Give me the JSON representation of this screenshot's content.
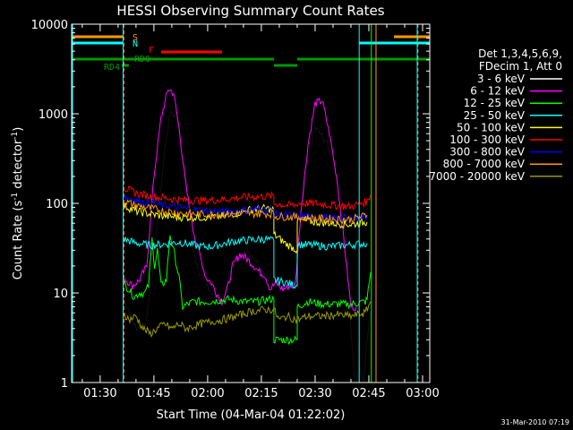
{
  "chart_data": {
    "type": "line",
    "title": "HESSI Observing Summary Count Rates",
    "xlabel": "Start Time (04-Mar-04 01:22:02)",
    "ylabel": "Count Rate (s⁻¹ detector⁻¹)",
    "ylabel_parts": [
      "Count Rate (s",
      "-1",
      " detector",
      "-1",
      ")"
    ],
    "yscale": "log",
    "ylim": [
      1,
      10000
    ],
    "xlim_minutes": [
      82.03,
      182.0
    ],
    "x_tick_labels": [
      "01:30",
      "01:45",
      "02:00",
      "02:15",
      "02:30",
      "02:45",
      "03:00"
    ],
    "x_tick_minutes": [
      90,
      105,
      120,
      135,
      150,
      165,
      180
    ],
    "y_tick_labels": [
      "1",
      "10",
      "100",
      "1000",
      "10000"
    ],
    "y_tick_values": [
      1,
      10,
      100,
      1000,
      10000
    ],
    "legend_header": [
      "Det 1,3,4,5,6,9,",
      "FDecim 1, Att 0"
    ],
    "footer_date": "31-Mar-2010 07:19",
    "state_labels": [
      "S",
      "N",
      "F",
      "RD0",
      "RD4"
    ],
    "series": [
      {
        "name": "3 - 6 keV",
        "color": "#000000",
        "points": [
          [
            96.5,
            9
          ],
          [
            100,
            4
          ],
          [
            103,
            5
          ],
          [
            106,
            60
          ],
          [
            108,
            400
          ],
          [
            109.5,
            1000
          ],
          [
            111,
            950
          ],
          [
            112.5,
            500
          ],
          [
            114,
            120
          ],
          [
            116,
            30
          ],
          [
            118,
            15
          ],
          [
            120,
            12
          ],
          [
            122,
            9
          ],
          [
            124,
            8
          ],
          [
            126,
            15
          ],
          [
            128,
            25
          ],
          [
            131,
            30
          ],
          [
            133,
            25
          ],
          [
            134.5,
            20
          ],
          [
            136,
            17
          ],
          [
            138,
            13
          ],
          [
            140,
            14
          ],
          [
            142,
            11
          ],
          [
            144,
            12
          ],
          [
            146,
            60
          ],
          [
            148,
            300
          ],
          [
            150,
            700
          ],
          [
            153,
            500
          ],
          [
            155,
            300
          ],
          [
            157,
            150
          ],
          [
            158.5,
            40
          ],
          [
            160,
            4
          ],
          [
            161,
            1
          ],
          [
            162.5,
            1.5
          ],
          [
            163.5,
            1
          ],
          [
            164.5,
            3
          ],
          [
            165.5,
            6
          ]
        ]
      },
      {
        "name": "6 - 12 keV",
        "color": "#ff00ff",
        "points": [
          [
            96.5,
            15
          ],
          [
            99,
            12
          ],
          [
            101,
            14
          ],
          [
            103,
            20
          ],
          [
            105,
            200
          ],
          [
            107,
            900
          ],
          [
            109,
            1900
          ],
          [
            110.5,
            1700
          ],
          [
            112,
            700
          ],
          [
            114,
            150
          ],
          [
            116,
            50
          ],
          [
            118,
            25
          ],
          [
            119.5,
            15
          ],
          [
            121,
            13
          ],
          [
            122.5,
            10
          ],
          [
            124,
            8
          ],
          [
            125.5,
            11
          ],
          [
            127,
            20
          ],
          [
            129,
            27
          ],
          [
            131,
            24
          ],
          [
            133,
            20
          ],
          [
            134.5,
            17
          ],
          [
            136,
            16
          ],
          [
            137.5,
            11
          ],
          [
            139,
            13
          ],
          [
            141,
            11
          ],
          [
            143,
            12
          ],
          [
            144.5,
            13
          ],
          [
            146,
            80
          ],
          [
            148,
            450
          ],
          [
            150,
            1300
          ],
          [
            152,
            1400
          ],
          [
            154,
            600
          ],
          [
            156,
            200
          ],
          [
            158,
            40
          ],
          [
            160,
            7
          ],
          [
            161.5,
            7
          ]
        ]
      },
      {
        "name": "12 - 25 keV",
        "color": "#00ff00",
        "points": [
          [
            96.5,
            13
          ],
          [
            98,
            11
          ],
          [
            99.5,
            9
          ],
          [
            101,
            10
          ],
          [
            102.5,
            10
          ],
          [
            103.5,
            12
          ],
          [
            104.5,
            40
          ],
          [
            105.2,
            20
          ],
          [
            106,
            30
          ],
          [
            107,
            12
          ],
          [
            108.5,
            14
          ],
          [
            109.5,
            45
          ],
          [
            110.5,
            30
          ],
          [
            112,
            15
          ],
          [
            113,
            7
          ],
          [
            116,
            8
          ],
          [
            120,
            8
          ],
          [
            126,
            8.5
          ],
          [
            130,
            8
          ],
          [
            134,
            8
          ],
          [
            137,
            8.5
          ],
          [
            138.5,
            8.5
          ],
          [
            138.5,
            3
          ],
          [
            145,
            3
          ],
          [
            145,
            7
          ],
          [
            148,
            8
          ],
          [
            152,
            7.5
          ],
          [
            156,
            7.5
          ],
          [
            160,
            7.5
          ],
          [
            164,
            8
          ],
          [
            164.5,
            8.5
          ],
          [
            165.5,
            17
          ]
        ]
      },
      {
        "name": "25 - 50 keV",
        "color": "#00ffff",
        "points": [
          [
            96.5,
            40
          ],
          [
            100,
            36
          ],
          [
            104,
            34
          ],
          [
            108,
            35
          ],
          [
            112,
            37
          ],
          [
            115,
            35
          ],
          [
            118,
            33
          ],
          [
            121,
            33
          ],
          [
            124,
            35
          ],
          [
            128,
            38
          ],
          [
            132,
            39
          ],
          [
            136,
            40
          ],
          [
            138.5,
            38
          ],
          [
            138.5,
            14
          ],
          [
            142,
            13
          ],
          [
            145,
            12
          ],
          [
            145,
            35
          ],
          [
            150,
            34
          ],
          [
            154,
            33
          ],
          [
            158,
            34
          ],
          [
            162,
            35
          ],
          [
            164.5,
            36
          ]
        ]
      },
      {
        "name": "50 - 100 keV",
        "color": "#ffff00",
        "points": [
          [
            96.5,
            95
          ],
          [
            100,
            82
          ],
          [
            104,
            76
          ],
          [
            108,
            72
          ],
          [
            112,
            70
          ],
          [
            116,
            70
          ],
          [
            120,
            70
          ],
          [
            124,
            72
          ],
          [
            128,
            78
          ],
          [
            132,
            85
          ],
          [
            136,
            88
          ],
          [
            138.5,
            85
          ],
          [
            138.5,
            45
          ],
          [
            142,
            35
          ],
          [
            145,
            30
          ],
          [
            145,
            65
          ],
          [
            150,
            62
          ],
          [
            155,
            60
          ],
          [
            160,
            58
          ],
          [
            164.5,
            62
          ]
        ]
      },
      {
        "name": "100 - 300 keV",
        "color": "#ff0000",
        "points": [
          [
            96.5,
            150
          ],
          [
            100,
            130
          ],
          [
            104,
            120
          ],
          [
            108,
            115
          ],
          [
            112,
            110
          ],
          [
            116,
            108
          ],
          [
            120,
            108
          ],
          [
            124,
            110
          ],
          [
            128,
            115
          ],
          [
            132,
            118
          ],
          [
            136,
            120
          ],
          [
            138.5,
            120
          ],
          [
            138.5,
            100
          ],
          [
            142,
            95
          ],
          [
            145,
            95
          ],
          [
            145,
            100
          ],
          [
            150,
            100
          ],
          [
            155,
            95
          ],
          [
            160,
            92
          ],
          [
            164.5,
            105
          ],
          [
            165.5,
            125
          ]
        ]
      },
      {
        "name": "300 - 800 keV",
        "color": "#0000ff",
        "points": [
          [
            96.5,
            120
          ],
          [
            100,
            108
          ],
          [
            104,
            100
          ],
          [
            108,
            95
          ],
          [
            112,
            90
          ],
          [
            116,
            85
          ],
          [
            120,
            82
          ],
          [
            124,
            80
          ],
          [
            128,
            82
          ],
          [
            132,
            85
          ],
          [
            136,
            86
          ],
          [
            138.5,
            85
          ],
          [
            138.5,
            75
          ],
          [
            145,
            72
          ],
          [
            150,
            70
          ],
          [
            155,
            68
          ],
          [
            160,
            68
          ],
          [
            164.5,
            72
          ]
        ]
      },
      {
        "name": "800 - 7000 keV",
        "color": "#ff9900",
        "points": [
          [
            96.5,
            105
          ],
          [
            100,
            95
          ],
          [
            104,
            88
          ],
          [
            108,
            82
          ],
          [
            112,
            78
          ],
          [
            116,
            76
          ],
          [
            120,
            75
          ],
          [
            124,
            75
          ],
          [
            128,
            76
          ],
          [
            132,
            77
          ],
          [
            136,
            77
          ],
          [
            138.5,
            76
          ],
          [
            138.5,
            72
          ],
          [
            145,
            70
          ],
          [
            150,
            68
          ],
          [
            155,
            67
          ],
          [
            160,
            66
          ],
          [
            164.5,
            74
          ]
        ]
      },
      {
        "name": "7000 - 20000 keV",
        "color": "#999900",
        "points": [
          [
            96.5,
            6
          ],
          [
            98,
            5
          ],
          [
            100,
            5.5
          ],
          [
            102,
            4
          ],
          [
            104,
            3.5
          ],
          [
            106,
            4
          ],
          [
            108,
            4.5
          ],
          [
            110,
            4
          ],
          [
            112,
            4.5
          ],
          [
            114,
            4
          ],
          [
            118,
            4.5
          ],
          [
            120,
            4.7
          ],
          [
            124,
            5
          ],
          [
            128,
            5.5
          ],
          [
            132,
            6.2
          ],
          [
            136,
            6.5
          ],
          [
            138.5,
            6.5
          ],
          [
            140,
            5
          ],
          [
            142,
            5.5
          ],
          [
            145,
            5
          ],
          [
            148,
            5.5
          ],
          [
            152,
            5.5
          ],
          [
            156,
            5.7
          ],
          [
            160,
            5.5
          ],
          [
            164,
            6
          ],
          [
            165.5,
            8
          ]
        ]
      }
    ]
  }
}
